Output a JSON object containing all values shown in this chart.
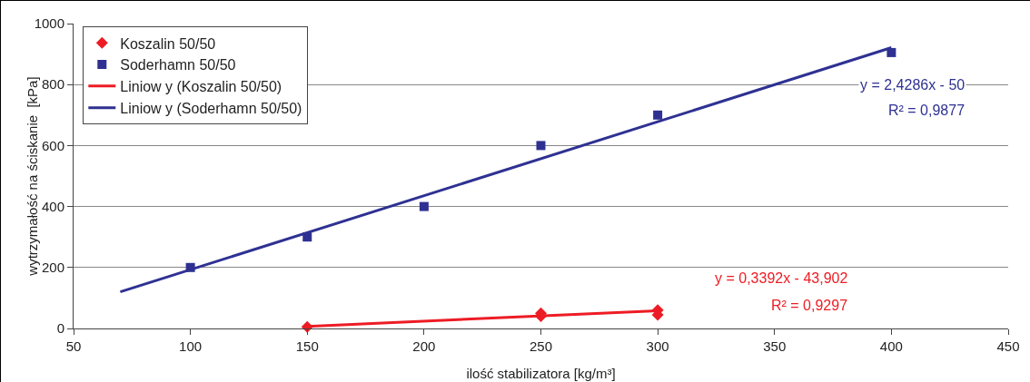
{
  "chart_data": {
    "type": "scatter",
    "xlabel": "ilość stabilizatora [kg/m³]",
    "ylabel": "wytrzymałość na ściskanie  [kPa]",
    "series": [
      {
        "name": "Koszalin 50/50",
        "type": "scatter",
        "marker": "diamond",
        "color": "#ed1c24",
        "x": [
          150,
          250,
          250,
          300,
          300
        ],
        "values": [
          5,
          40,
          50,
          45,
          60
        ]
      },
      {
        "name": "Soderhamn 50/50",
        "type": "scatter",
        "marker": "square",
        "color": "#2e3192",
        "x": [
          100,
          150,
          200,
          250,
          300,
          400
        ],
        "values": [
          200,
          300,
          400,
          600,
          700,
          905
        ]
      },
      {
        "name": "Liniow y (Koszalin 50/50)",
        "type": "line",
        "marker": "none",
        "color": "#ed1c24",
        "x": [
          150,
          300
        ],
        "values": [
          7,
          58
        ]
      },
      {
        "name": "Liniow y (Soderhamn 50/50)",
        "type": "line",
        "marker": "none",
        "color": "#2e3192",
        "x": [
          70,
          400
        ],
        "values": [
          120,
          921
        ]
      }
    ],
    "annotations": [
      "y = 2,4286x - 50",
      "R² = 0,9877",
      "y = 0,3392x - 43,902",
      "R² = 0,9297"
    ],
    "xlim": [
      50,
      450
    ],
    "xticks": [
      50,
      100,
      150,
      200,
      250,
      300,
      350,
      400,
      450
    ],
    "ylim": [
      0,
      1000
    ],
    "yticks": [
      0,
      200,
      400,
      600,
      800,
      1000
    ],
    "grid": "y",
    "legend": "top left"
  }
}
